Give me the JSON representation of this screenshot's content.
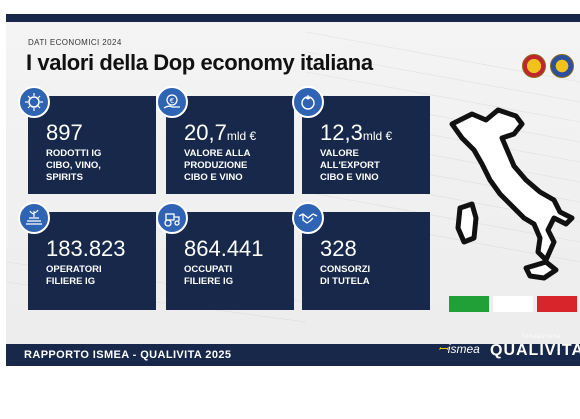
{
  "eyebrow": "DATI ECONOMICI 2024",
  "title": "I valori della Dop economy italiana",
  "tiles": [
    {
      "value": "897",
      "unit": "",
      "label": "RODOTTI IG\nCIBO, VINO,\nSPIRITS",
      "icon": "sun-seal-icon"
    },
    {
      "value": "20,7",
      "unit": "mld €",
      "label": "VALORE ALLA\nPRODUZIONE\nCIBO E VINO",
      "icon": "euro-hand-icon"
    },
    {
      "value": "12,3",
      "unit": "mld €",
      "label": "VALORE\nALL'EXPORT\nCIBO E VINO",
      "icon": "tomato-icon"
    },
    {
      "value": "183.823",
      "unit": "",
      "label": "OPERATORI\nFILIERE IG",
      "icon": "farm-field-icon"
    },
    {
      "value": "864.441",
      "unit": "",
      "label": "OCCUPATI\nFILIERE IG",
      "icon": "tractor-icon"
    },
    {
      "value": "328",
      "unit": "",
      "label": "CONSORZI\nDI TUTELA",
      "icon": "handshake-icon"
    }
  ],
  "footer": "RAPPORTO ISMEA - QUALIVITA 2025",
  "logos": {
    "ismea": "ismea",
    "fondazione": "fondazione",
    "qualivita": "QUALIVITA"
  },
  "colors": {
    "navy": "#17284a",
    "icon_blue": "#2f64b5",
    "flag_green": "#21a038",
    "flag_white": "#ffffff",
    "flag_red": "#d8242b"
  }
}
